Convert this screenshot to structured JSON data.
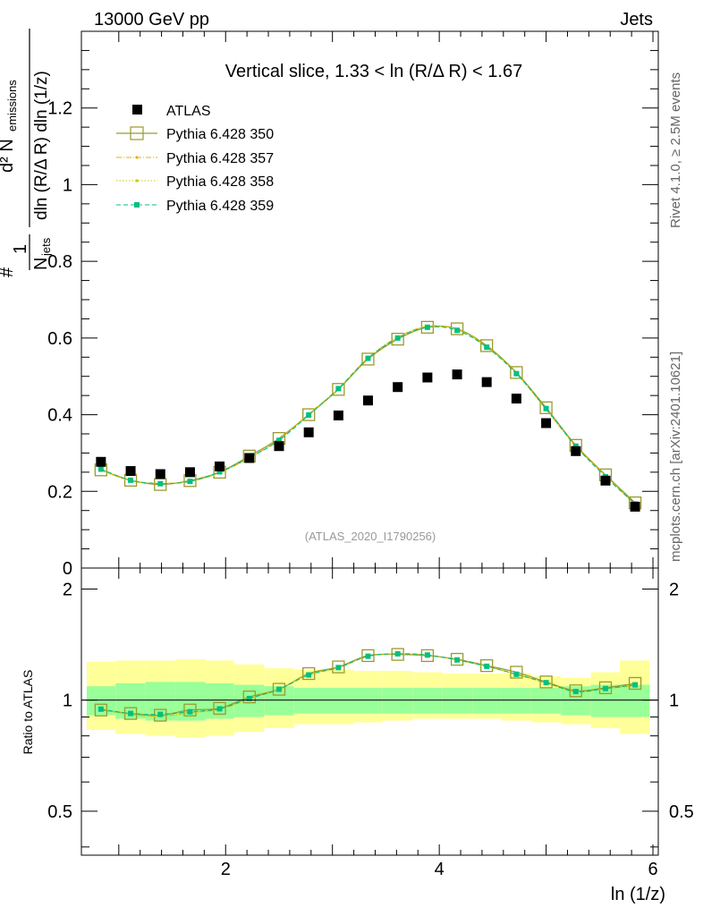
{
  "header": {
    "left": "13000 GeV pp",
    "right": "Jets"
  },
  "side_labels": {
    "rivet": "Rivet 4.1.0, ≥ 2.5M events",
    "mcplots": "mcplots.cern.ch [arXiv:2401.10621]"
  },
  "chart_data": [
    {
      "type": "scatter",
      "panel": "main",
      "title": "Vertical slice, 1.33 < ln (R/Δ R) < 1.67",
      "watermark": "(ATLAS_2020_I1790256)",
      "ylabel": "1/N_jets d²N_emissions / dln(R/ΔR) dln(1/z)",
      "ylabel_parts": {
        "frac1_num": "1",
        "frac1_den": "N",
        "frac1_den_sub": "jets",
        "frac2_num": "d² N",
        "frac2_num_sub": "emissions",
        "frac2_den": "dln (R/Δ R) dln (1/z)"
      },
      "xlim": [
        0.65,
        6.05
      ],
      "ylim": [
        0,
        1.4
      ],
      "yticks": [
        0,
        0.2,
        0.4,
        0.6,
        0.8,
        1,
        1.2
      ],
      "ytick_labels": [
        "0",
        "0.2",
        "0.4",
        "0.6",
        "0.8",
        "1",
        "1.2"
      ],
      "x": [
        0.833,
        1.111,
        1.389,
        1.667,
        1.944,
        2.222,
        2.5,
        2.778,
        3.056,
        3.333,
        3.611,
        3.889,
        4.167,
        4.444,
        4.722,
        5.0,
        5.278,
        5.556,
        5.833
      ],
      "series": [
        {
          "name": "ATLAS",
          "color": "#000000",
          "style": "data",
          "values": [
            0.277,
            0.253,
            0.245,
            0.25,
            0.265,
            0.287,
            0.318,
            0.354,
            0.398,
            0.437,
            0.472,
            0.497,
            0.505,
            0.485,
            0.442,
            0.378,
            0.305,
            0.228,
            0.16
          ]
        },
        {
          "name": "Pythia 6.428 350",
          "color": "#9a9a2e",
          "style": "open-square-line",
          "values": [
            0.256,
            0.229,
            0.218,
            0.228,
            0.25,
            0.292,
            0.338,
            0.4,
            0.466,
            0.545,
            0.597,
            0.628,
            0.624,
            0.58,
            0.51,
            0.418,
            0.32,
            0.243,
            0.17
          ]
        },
        {
          "name": "Pythia 6.428 357",
          "color": "#e8b000",
          "style": "dash-dot",
          "values": [
            0.257,
            0.228,
            0.221,
            0.226,
            0.249,
            0.288,
            0.335,
            0.402,
            0.468,
            0.548,
            0.602,
            0.631,
            0.623,
            0.578,
            0.508,
            0.414,
            0.318,
            0.241,
            0.166
          ]
        },
        {
          "name": "Pythia 6.428 358",
          "color": "#c8c800",
          "style": "dotted",
          "values": [
            0.255,
            0.227,
            0.221,
            0.226,
            0.248,
            0.287,
            0.334,
            0.401,
            0.467,
            0.547,
            0.601,
            0.63,
            0.622,
            0.577,
            0.507,
            0.413,
            0.317,
            0.24,
            0.165
          ]
        },
        {
          "name": "Pythia 6.428 359",
          "color": "#00c080",
          "style": "dashed-square",
          "values": [
            0.258,
            0.229,
            0.22,
            0.226,
            0.251,
            0.288,
            0.333,
            0.399,
            0.468,
            0.547,
            0.6,
            0.628,
            0.62,
            0.576,
            0.507,
            0.416,
            0.318,
            0.238,
            0.167
          ]
        }
      ]
    },
    {
      "type": "scatter",
      "panel": "ratio",
      "ylabel": "Ratio to ATLAS",
      "xlabel": "ln (1/z)",
      "xlim": [
        0.65,
        6.05
      ],
      "ylim": [
        0.38,
        2.28
      ],
      "xticks": [
        2,
        4,
        6
      ],
      "xtick_labels": [
        "2",
        "4",
        "6"
      ],
      "yticks": [
        0.5,
        1,
        2
      ],
      "ytick_labels": [
        "0.5",
        "1",
        "2"
      ],
      "bands": {
        "edges": [
          0.7,
          0.97,
          1.25,
          1.53,
          1.81,
          2.08,
          2.36,
          2.64,
          3.2,
          3.47,
          3.75,
          4.03,
          4.31,
          4.58,
          4.86,
          5.14,
          5.42,
          5.69,
          5.97
        ],
        "inner_color": "#99ff99",
        "outer_color": "#ffff99",
        "inner": [
          [
            0.91,
            1.09
          ],
          [
            0.89,
            1.11
          ],
          [
            0.88,
            1.12
          ],
          [
            0.88,
            1.12
          ],
          [
            0.89,
            1.11
          ],
          [
            0.9,
            1.1
          ],
          [
            0.91,
            1.09
          ],
          [
            0.92,
            1.08
          ],
          [
            0.92,
            1.08
          ],
          [
            0.92,
            1.08
          ],
          [
            0.92,
            1.08
          ],
          [
            0.92,
            1.08
          ],
          [
            0.92,
            1.08
          ],
          [
            0.92,
            1.08
          ],
          [
            0.92,
            1.08
          ],
          [
            0.91,
            1.09
          ],
          [
            0.9,
            1.1
          ],
          [
            0.9,
            1.1
          ]
        ],
        "outer": [
          [
            0.83,
            1.27
          ],
          [
            0.81,
            1.28
          ],
          [
            0.8,
            1.28
          ],
          [
            0.79,
            1.29
          ],
          [
            0.8,
            1.28
          ],
          [
            0.82,
            1.25
          ],
          [
            0.84,
            1.22
          ],
          [
            0.86,
            1.21
          ],
          [
            0.87,
            1.2
          ],
          [
            0.88,
            1.2
          ],
          [
            0.89,
            1.19
          ],
          [
            0.89,
            1.18
          ],
          [
            0.89,
            1.18
          ],
          [
            0.88,
            1.18
          ],
          [
            0.87,
            1.16
          ],
          [
            0.86,
            1.15
          ],
          [
            0.84,
            1.19
          ],
          [
            0.81,
            1.28
          ]
        ]
      },
      "series": [
        {
          "name": "Pythia 6.428 350",
          "color": "#9a9a2e",
          "style": "open-square-line",
          "values": [
            0.94,
            0.92,
            0.91,
            0.94,
            0.95,
            1.02,
            1.07,
            1.18,
            1.23,
            1.32,
            1.33,
            1.32,
            1.29,
            1.24,
            1.19,
            1.12,
            1.06,
            1.08,
            1.11
          ]
        },
        {
          "name": "Pythia 6.428 357",
          "color": "#e8b000",
          "style": "dash-dot",
          "values": [
            0.945,
            0.915,
            0.905,
            0.925,
            0.945,
            1.01,
            1.07,
            1.175,
            1.225,
            1.315,
            1.335,
            1.325,
            1.285,
            1.235,
            1.175,
            1.115,
            1.055,
            1.075,
            1.095
          ]
        },
        {
          "name": "Pythia 6.428 358",
          "color": "#c8c800",
          "style": "dotted",
          "values": [
            0.944,
            0.914,
            0.904,
            0.924,
            0.944,
            1.008,
            1.068,
            1.173,
            1.223,
            1.313,
            1.333,
            1.323,
            1.283,
            1.233,
            1.173,
            1.113,
            1.053,
            1.073,
            1.093
          ]
        },
        {
          "name": "Pythia 6.428 359",
          "color": "#00c080",
          "style": "dashed-square",
          "values": [
            0.945,
            0.92,
            0.915,
            0.93,
            0.947,
            1.01,
            1.07,
            1.17,
            1.225,
            1.315,
            1.335,
            1.325,
            1.285,
            1.235,
            1.175,
            1.115,
            1.055,
            1.075,
            1.1
          ]
        }
      ]
    }
  ]
}
